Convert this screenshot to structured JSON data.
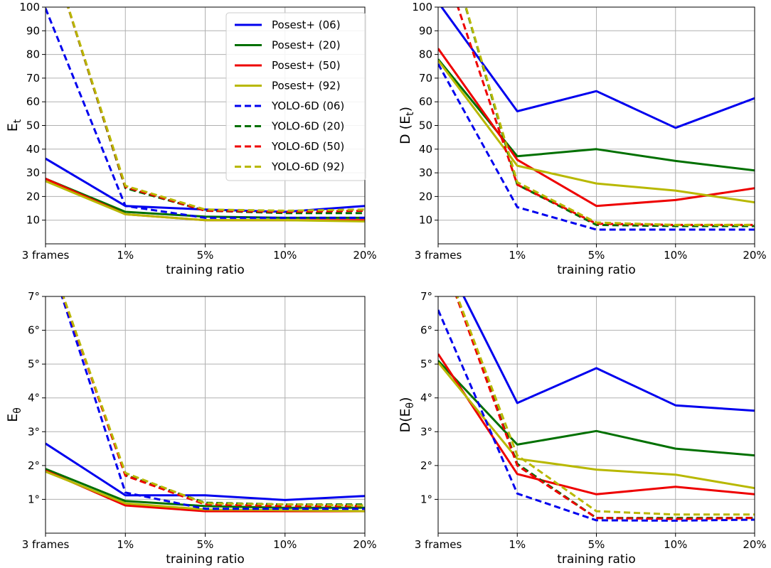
{
  "styles": {
    "colors": {
      "06": "#0000ee",
      "20": "#007000",
      "50": "#ee0000",
      "92": "#b8b800"
    },
    "solid": "Posest+",
    "dashed": "YOLO-6D"
  },
  "chart_data": [
    {
      "type": "line",
      "xlabel": "training ratio",
      "ylabel": "E",
      "ylabel_sub": "t",
      "categories": [
        "3 frames",
        "1%",
        "5%",
        "10%",
        "20%"
      ],
      "ylim": [
        0,
        100
      ],
      "yticks": [
        10,
        20,
        30,
        40,
        50,
        60,
        70,
        80,
        90,
        100
      ],
      "ytick_labels": [
        "10",
        "20",
        "30",
        "40",
        "50",
        "60",
        "70",
        "80",
        "90",
        "100"
      ],
      "legend": "top-right",
      "series": [
        {
          "name": "Posest+ (06)",
          "key": "06",
          "dash": false,
          "values": [
            36,
            16,
            14.5,
            13.5,
            16
          ]
        },
        {
          "name": "Posest+ (20)",
          "key": "20",
          "dash": false,
          "values": [
            27.5,
            13.5,
            11.5,
            11,
            11
          ]
        },
        {
          "name": "Posest+ (50)",
          "key": "50",
          "dash": false,
          "values": [
            27.5,
            12.5,
            10,
            10,
            10
          ]
        },
        {
          "name": "Posest+ (92)",
          "key": "92",
          "dash": false,
          "values": [
            26.5,
            12.5,
            10,
            10,
            9.5
          ]
        },
        {
          "name": "YOLO-6D (06)",
          "key": "06",
          "dash": true,
          "values": [
            99.5,
            16,
            11,
            11,
            11
          ]
        },
        {
          "name": "YOLO-6D (20)",
          "key": "20",
          "dash": true,
          "values": [
            130,
            23.5,
            14,
            13,
            13
          ]
        },
        {
          "name": "YOLO-6D (50)",
          "key": "50",
          "dash": true,
          "values": [
            130,
            24,
            14,
            13.5,
            14
          ]
        },
        {
          "name": "YOLO-6D (92)",
          "key": "92",
          "dash": true,
          "values": [
            130,
            24.5,
            14.5,
            14,
            14.5
          ]
        }
      ]
    },
    {
      "type": "line",
      "xlabel": "training ratio",
      "ylabel": "D (E",
      "ylabel_sub": "t",
      "ylabel_close": ")",
      "categories": [
        "3 frames",
        "1%",
        "5%",
        "10%",
        "20%"
      ],
      "ylim": [
        0,
        100
      ],
      "yticks": [
        10,
        20,
        30,
        40,
        50,
        60,
        70,
        80,
        90,
        100
      ],
      "ytick_labels": [
        "10",
        "20",
        "30",
        "40",
        "50",
        "60",
        "70",
        "80",
        "90",
        "100"
      ],
      "series": [
        {
          "name": "Posest+ (06)",
          "key": "06",
          "dash": false,
          "values": [
            102,
            56,
            64.5,
            49,
            61.5
          ]
        },
        {
          "name": "Posest+ (20)",
          "key": "20",
          "dash": false,
          "values": [
            78,
            37,
            40,
            35,
            31
          ]
        },
        {
          "name": "Posest+ (50)",
          "key": "50",
          "dash": false,
          "values": [
            82.5,
            35.5,
            16,
            18.5,
            23.5
          ]
        },
        {
          "name": "Posest+ (92)",
          "key": "92",
          "dash": false,
          "values": [
            77.5,
            33,
            25.5,
            22.5,
            17.5
          ]
        },
        {
          "name": "YOLO-6D (06)",
          "key": "06",
          "dash": true,
          "values": [
            76,
            15.5,
            6,
            6,
            6
          ]
        },
        {
          "name": "YOLO-6D (20)",
          "key": "20",
          "dash": true,
          "values": [
            140,
            25,
            8,
            7.5,
            7.5
          ]
        },
        {
          "name": "YOLO-6D (50)",
          "key": "50",
          "dash": true,
          "values": [
            125,
            25,
            8.5,
            8,
            8
          ]
        },
        {
          "name": "YOLO-6D (92)",
          "key": "92",
          "dash": true,
          "values": [
            140,
            26,
            9,
            8,
            8
          ]
        }
      ]
    },
    {
      "type": "line",
      "xlabel": "training ratio",
      "ylabel": "E",
      "ylabel_sub": "θ",
      "categories": [
        "3 frames",
        "1%",
        "5%",
        "10%",
        "20%"
      ],
      "ylim": [
        0,
        7
      ],
      "yticks": [
        1,
        2,
        3,
        4,
        5,
        6,
        7
      ],
      "ytick_labels": [
        "1°",
        "2°",
        "3°",
        "4°",
        "5°",
        "6°",
        "7°"
      ],
      "series": [
        {
          "name": "Posest+ (06)",
          "key": "06",
          "dash": false,
          "values": [
            2.65,
            1.12,
            1.12,
            0.98,
            1.1
          ]
        },
        {
          "name": "Posest+ (20)",
          "key": "20",
          "dash": false,
          "values": [
            1.9,
            0.95,
            0.8,
            0.75,
            0.75
          ]
        },
        {
          "name": "Posest+ (50)",
          "key": "50",
          "dash": false,
          "values": [
            1.85,
            0.82,
            0.65,
            0.65,
            0.65
          ]
        },
        {
          "name": "Posest+ (92)",
          "key": "92",
          "dash": false,
          "values": [
            1.82,
            0.88,
            0.7,
            0.68,
            0.65
          ]
        },
        {
          "name": "YOLO-6D (06)",
          "key": "06",
          "dash": true,
          "values": [
            8.5,
            1.2,
            0.72,
            0.72,
            0.72
          ]
        },
        {
          "name": "YOLO-6D (20)",
          "key": "20",
          "dash": true,
          "values": [
            8.5,
            1.72,
            0.9,
            0.85,
            0.85
          ]
        },
        {
          "name": "YOLO-6D (50)",
          "key": "50",
          "dash": true,
          "values": [
            8.5,
            1.7,
            0.85,
            0.8,
            0.8
          ]
        },
        {
          "name": "YOLO-6D (92)",
          "key": "92",
          "dash": true,
          "values": [
            8.5,
            1.78,
            0.88,
            0.85,
            0.82
          ]
        }
      ]
    },
    {
      "type": "line",
      "xlabel": "training ratio",
      "ylabel": "D(E",
      "ylabel_sub": "θ",
      "ylabel_close": ")",
      "categories": [
        "3 frames",
        "1%",
        "5%",
        "10%",
        "20%"
      ],
      "ylim": [
        0,
        7
      ],
      "yticks": [
        1,
        2,
        3,
        4,
        5,
        6,
        7
      ],
      "ytick_labels": [
        "1°",
        "2°",
        "3°",
        "4°",
        "5°",
        "6°",
        "7°"
      ],
      "series": [
        {
          "name": "Posest+ (06)",
          "key": "06",
          "dash": false,
          "values": [
            8.5,
            3.85,
            4.88,
            3.78,
            3.62
          ]
        },
        {
          "name": "Posest+ (20)",
          "key": "20",
          "dash": false,
          "values": [
            5.1,
            2.62,
            3.02,
            2.5,
            2.3
          ]
        },
        {
          "name": "Posest+ (50)",
          "key": "50",
          "dash": false,
          "values": [
            5.3,
            1.75,
            1.15,
            1.37,
            1.15
          ]
        },
        {
          "name": "Posest+ (92)",
          "key": "92",
          "dash": false,
          "values": [
            5.05,
            2.2,
            1.88,
            1.73,
            1.33
          ]
        },
        {
          "name": "YOLO-6D (06)",
          "key": "06",
          "dash": true,
          "values": [
            6.6,
            1.17,
            0.38,
            0.37,
            0.4
          ]
        },
        {
          "name": "YOLO-6D (20)",
          "key": "20",
          "dash": true,
          "values": [
            8.5,
            2.05,
            0.45,
            0.45,
            0.45
          ]
        },
        {
          "name": "YOLO-6D (50)",
          "key": "50",
          "dash": true,
          "values": [
            8.5,
            2.0,
            0.45,
            0.42,
            0.45
          ]
        },
        {
          "name": "YOLO-6D (92)",
          "key": "92",
          "dash": true,
          "values": [
            8.5,
            2.3,
            0.65,
            0.55,
            0.55
          ]
        }
      ]
    }
  ]
}
